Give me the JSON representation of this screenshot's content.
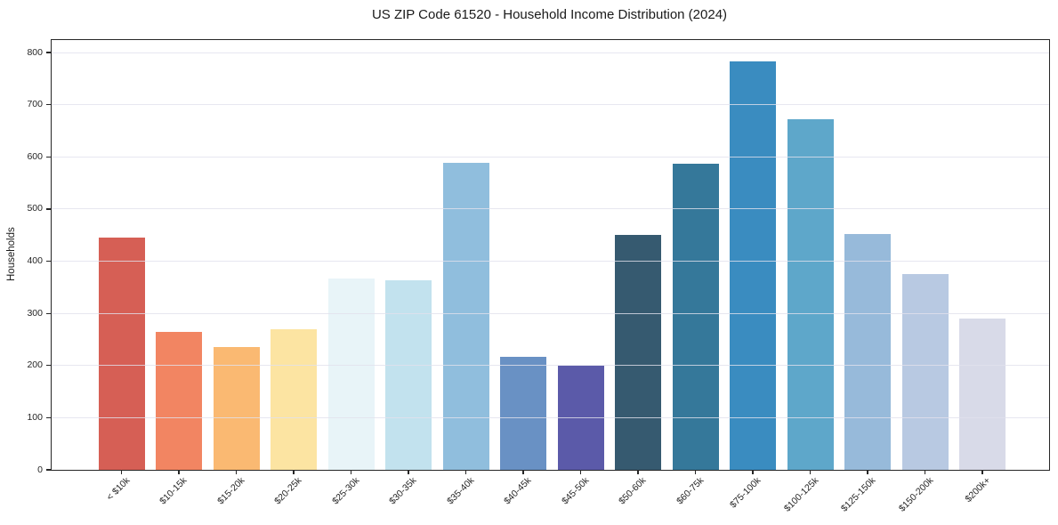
{
  "chart_data": {
    "type": "bar",
    "title": "US ZIP Code 61520 - Household Income Distribution (2024)",
    "xlabel": "",
    "ylabel": "Households",
    "categories": [
      "< $10k",
      "$10-15k",
      "$15-20k",
      "$20-25k",
      "$25-30k",
      "$30-35k",
      "$35-40k",
      "$40-45k",
      "$45-50k",
      "$50-60k",
      "$60-75k",
      "$75-100k",
      "$100-125k",
      "$125-150k",
      "$150-200k",
      "$200k+"
    ],
    "values": [
      445,
      265,
      235,
      270,
      367,
      363,
      589,
      217,
      200,
      450,
      587,
      783,
      672,
      452,
      375,
      290
    ],
    "bar_colors": [
      "#d65f55",
      "#f28562",
      "#fab972",
      "#fce4a2",
      "#e8f4f8",
      "#c2e2ee",
      "#90bedd",
      "#6991c4",
      "#5b5aa9",
      "#365a70",
      "#35789a",
      "#3a8cc0",
      "#5ea7ca",
      "#97bada",
      "#b8c9e2",
      "#d8dae8"
    ],
    "yticks": [
      0,
      100,
      200,
      300,
      400,
      500,
      600,
      700,
      800
    ],
    "ylim": [
      0,
      824
    ],
    "grid": "horizontal",
    "grid_color": "#e6e6ed",
    "axis_color": "#262626",
    "background": "#ffffff",
    "legend": "none"
  }
}
